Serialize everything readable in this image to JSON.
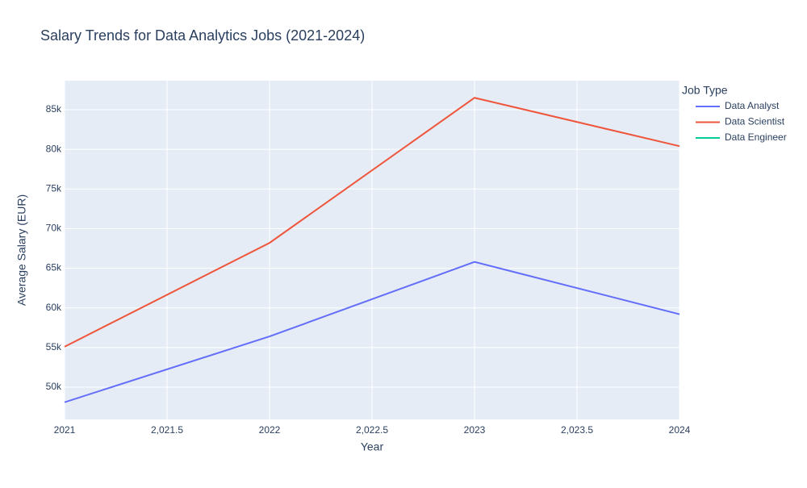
{
  "chart_data": {
    "type": "line",
    "title": "Salary Trends for Data Analytics Jobs (2021-2024)",
    "x_label": "Year",
    "y_label": "Average Salary (EUR)",
    "legend_title": "Job Type",
    "x": [
      2021,
      2022,
      2023,
      2024
    ],
    "series": [
      {
        "name": "Data Analyst",
        "color": "#636efa",
        "values": [
          48100,
          56400,
          65800,
          59200
        ]
      },
      {
        "name": "Data Scientist",
        "color": "#ef553b",
        "values": [
          55100,
          68200,
          86500,
          80400
        ]
      },
      {
        "name": "Data Engineer",
        "color": "#00cc96",
        "values": [
          null,
          null,
          null,
          null
        ]
      }
    ],
    "xlim": [
      2021,
      2024
    ],
    "xticks": [
      2021,
      {
        "value": 2021.5,
        "label": "2,021.5"
      },
      2022,
      {
        "value": 2022.5,
        "label": "2,022.5"
      },
      2023,
      {
        "value": 2023.5,
        "label": "2,023.5"
      },
      2024
    ],
    "ylim": [
      45930,
      88660
    ],
    "yticks": [
      {
        "value": 50000,
        "label": "50k"
      },
      {
        "value": 55000,
        "label": "55k"
      },
      {
        "value": 60000,
        "label": "60k"
      },
      {
        "value": 65000,
        "label": "65k"
      },
      {
        "value": 70000,
        "label": "70k"
      },
      {
        "value": 75000,
        "label": "75k"
      },
      {
        "value": 80000,
        "label": "80k"
      },
      {
        "value": 85000,
        "label": "85k"
      }
    ],
    "grid": true,
    "legend": "right"
  }
}
